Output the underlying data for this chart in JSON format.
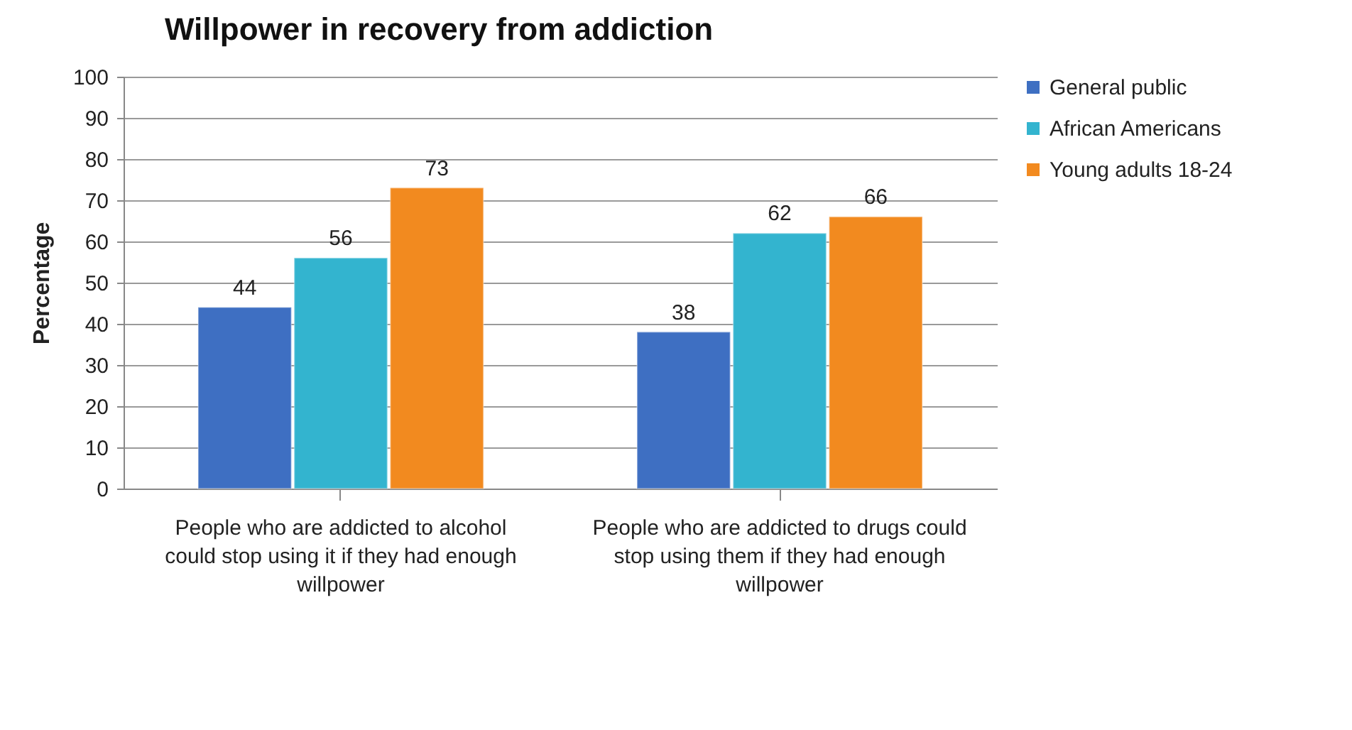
{
  "chart_data": {
    "type": "bar",
    "title": "Willpower in recovery from addiction",
    "ylabel": "Percentage",
    "categories": [
      "People who are addicted to alcohol could stop using it if they had enough willpower",
      "People who are addicted to drugs could stop using them if they had enough willpower"
    ],
    "series": [
      {
        "name": "General public",
        "color": "#3e6fc2",
        "values": [
          44,
          38
        ]
      },
      {
        "name": "African Americans",
        "color": "#33b4cf",
        "values": [
          56,
          62
        ]
      },
      {
        "name": "Young adults 18-24",
        "color": "#f28a1f",
        "values": [
          73,
          66
        ]
      }
    ],
    "ylim": [
      0,
      100
    ],
    "yticks": [
      0,
      10,
      20,
      30,
      40,
      50,
      60,
      70,
      80,
      90,
      100
    ],
    "grid": "y",
    "legend": "right",
    "data_labels": true
  }
}
